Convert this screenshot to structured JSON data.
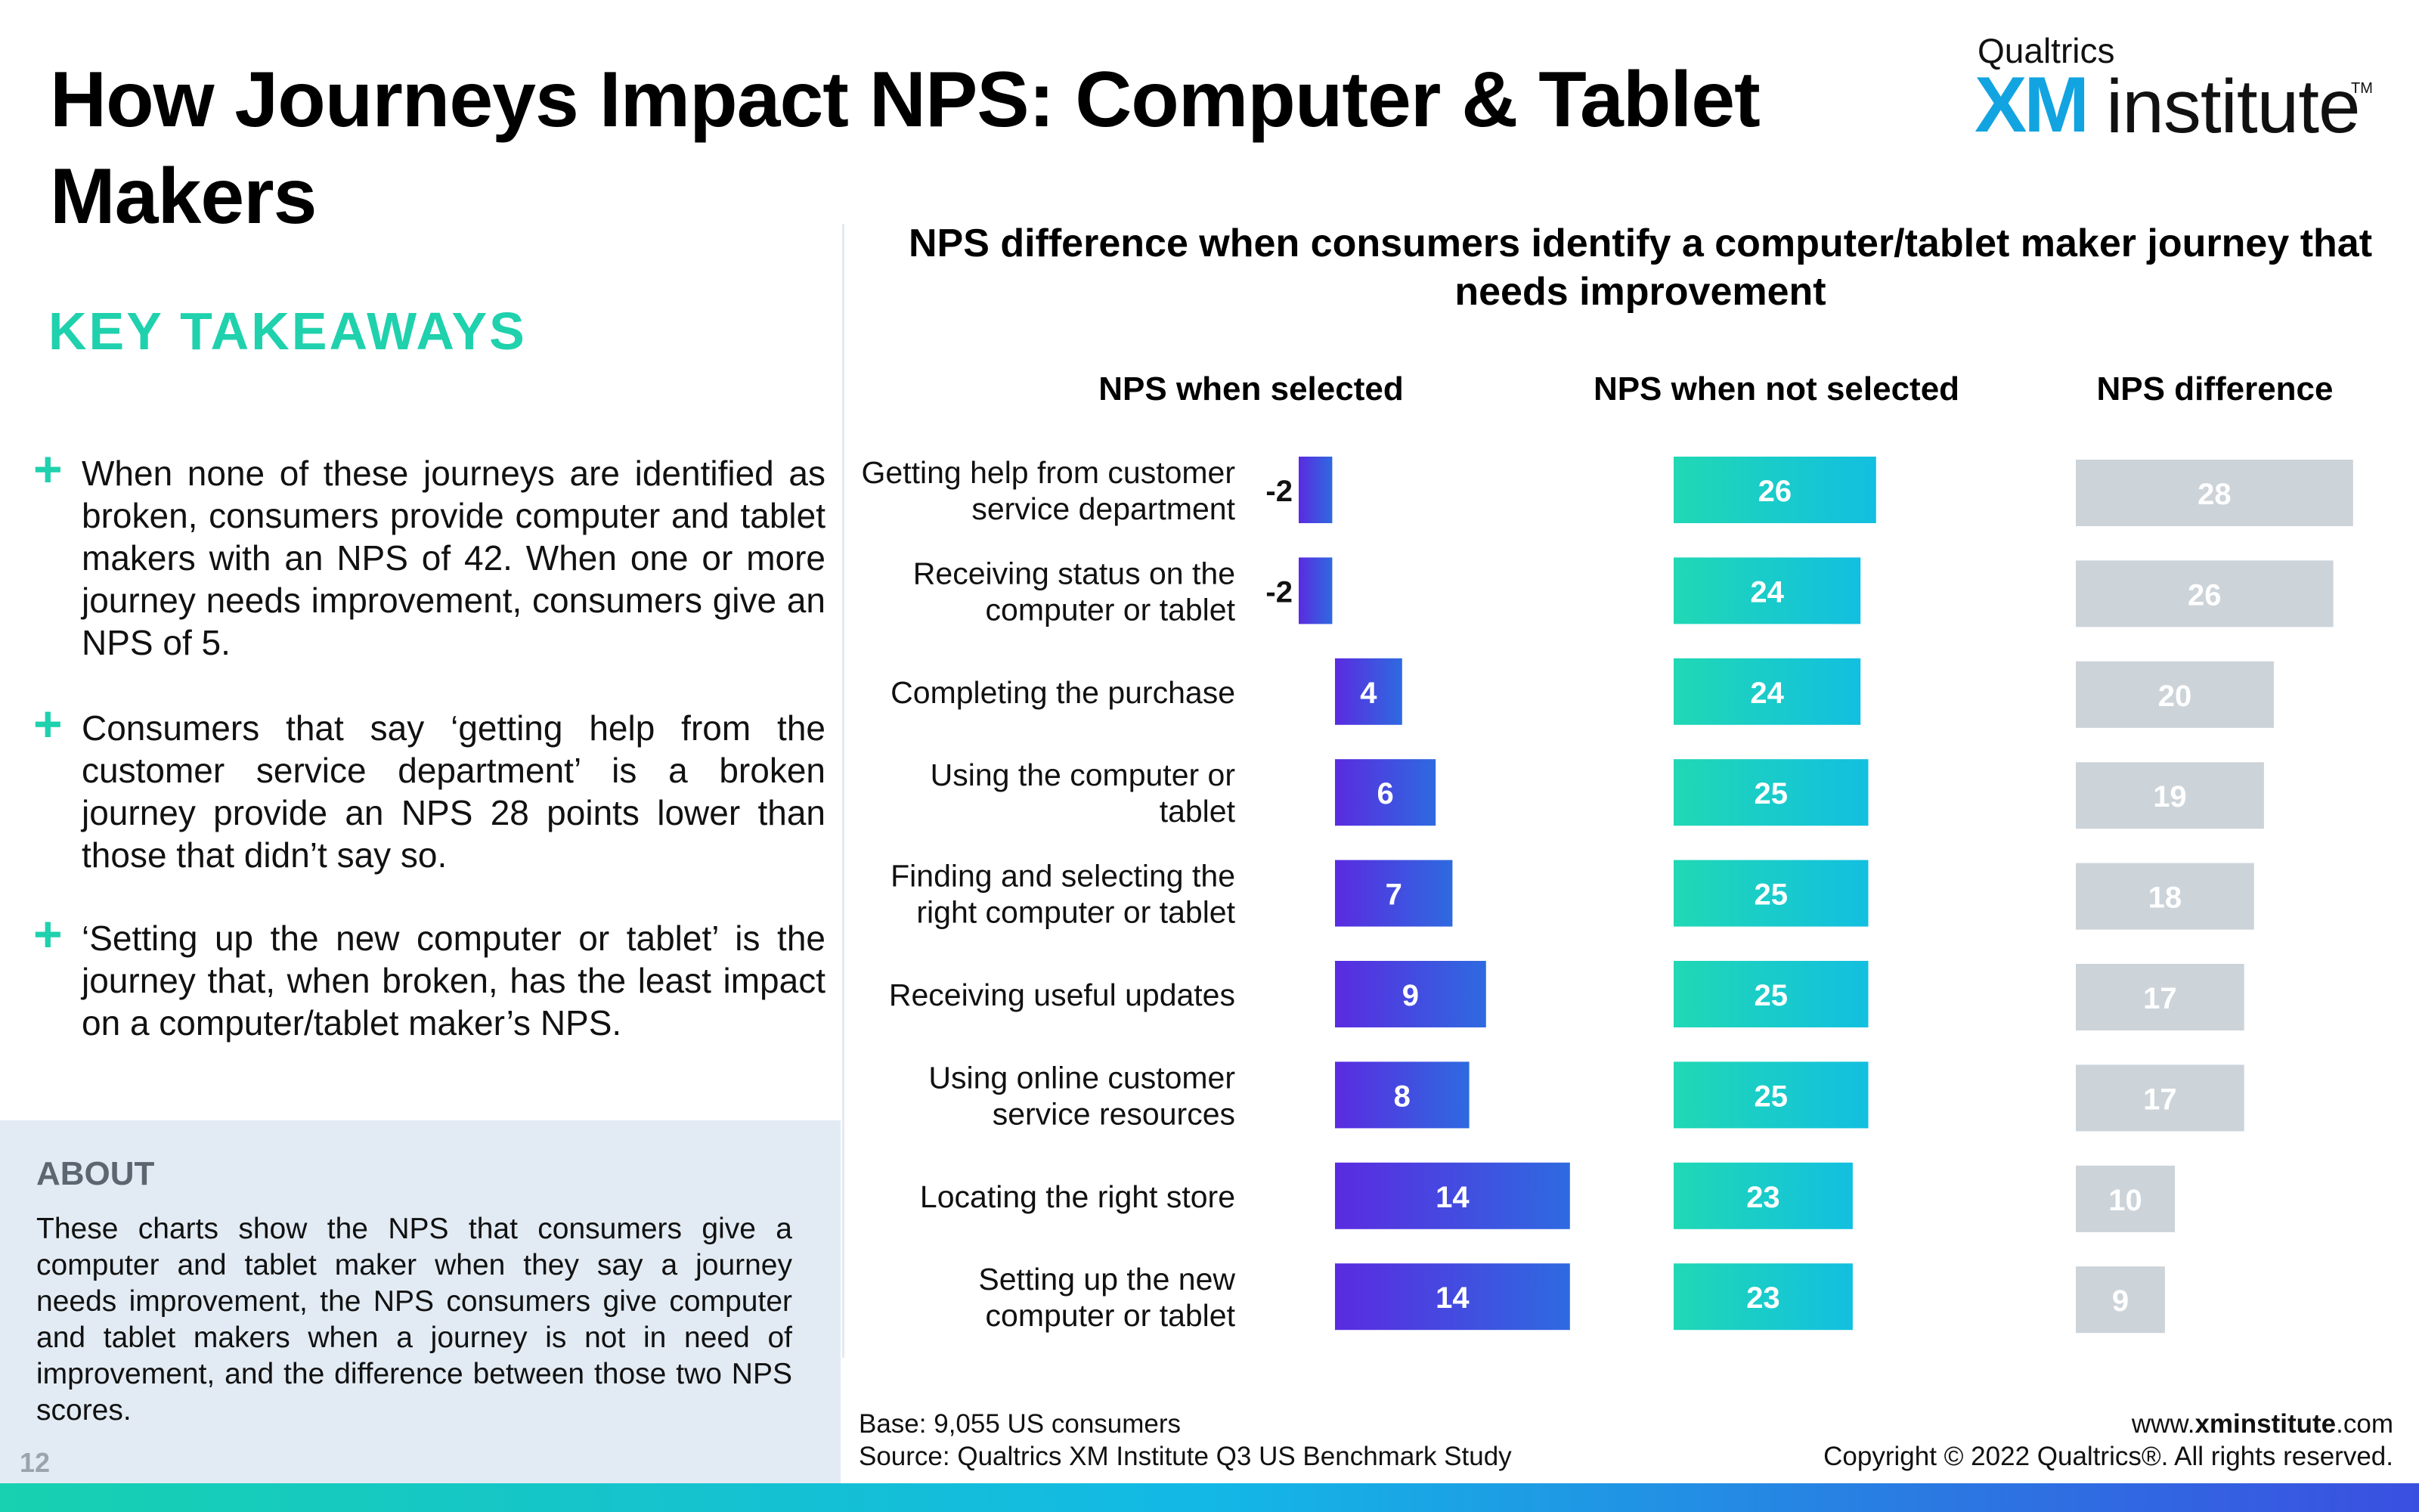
{
  "title": "How Journeys Impact NPS: Computer & Tablet Makers",
  "logo": {
    "company": "Qualtrics",
    "xm": "XM",
    "institute": "institute",
    "tm": "TM"
  },
  "takeaways": {
    "heading": "KEY TAKEAWAYS",
    "items": [
      "When none of these journeys are identified as broken, consumers provide computer and tablet makers with an NPS of 42. When one or more journey needs improvement, consumers give an NPS of 5.",
      "Consumers that say ‘getting help from the customer service department’ is a broken journey provide an NPS 28 points lower than those that didn’t say so.",
      "‘Setting up the new computer or tablet’ is the journey that, when broken, has the least impact on a computer/tablet maker’s NPS."
    ]
  },
  "about": {
    "heading": "ABOUT",
    "text": "These charts show the NPS that consumers give a computer and tablet maker when they say a journey needs improvement, the NPS consumers give computer and tablet makers when a journey is not in need of improvement, and the difference between those two NPS scores."
  },
  "page_number": "12",
  "footer": {
    "base": "Base: 9,055 US consumers",
    "source": "Source: Qualtrics XM Institute Q3 US Benchmark Study",
    "url_prefix": "www.",
    "url_bold": "xminstitute",
    "url_suffix": ".com",
    "copyright": "Copyright © 2022 Qualtrics®. All rights reserved."
  },
  "colors": {
    "accent_teal": "#1fd1ad",
    "selected_gradient": [
      "#5a2be0",
      "#2e6ae0"
    ],
    "not_selected_gradient": [
      "#20d8b4",
      "#12bfe0"
    ],
    "difference": "#ccd3d9"
  },
  "chart_data": {
    "type": "bar",
    "orientation": "horizontal",
    "title": "NPS difference when consumers identify a computer/tablet maker journey that needs improvement",
    "categories": [
      [
        "Getting help from customer",
        "service department"
      ],
      [
        "Receiving status on the",
        "computer or tablet"
      ],
      [
        "Completing the purchase"
      ],
      [
        "Using the computer or",
        "tablet"
      ],
      [
        "Finding and selecting the",
        "right computer or tablet"
      ],
      [
        "Receiving useful updates"
      ],
      [
        "Using online customer",
        "service resources"
      ],
      [
        "Locating the right store"
      ],
      [
        "Setting up the new",
        "computer or tablet"
      ]
    ],
    "series": [
      {
        "name": "NPS when selected",
        "values": [
          -2,
          -2,
          4,
          6,
          7,
          9,
          8,
          14,
          14
        ]
      },
      {
        "name": "NPS when not selected",
        "values": [
          26,
          24,
          24,
          25,
          25,
          25,
          25,
          23,
          23
        ]
      },
      {
        "name": "NPS difference",
        "values": [
          28,
          26,
          20,
          19,
          18,
          17,
          17,
          10,
          9
        ]
      }
    ]
  }
}
